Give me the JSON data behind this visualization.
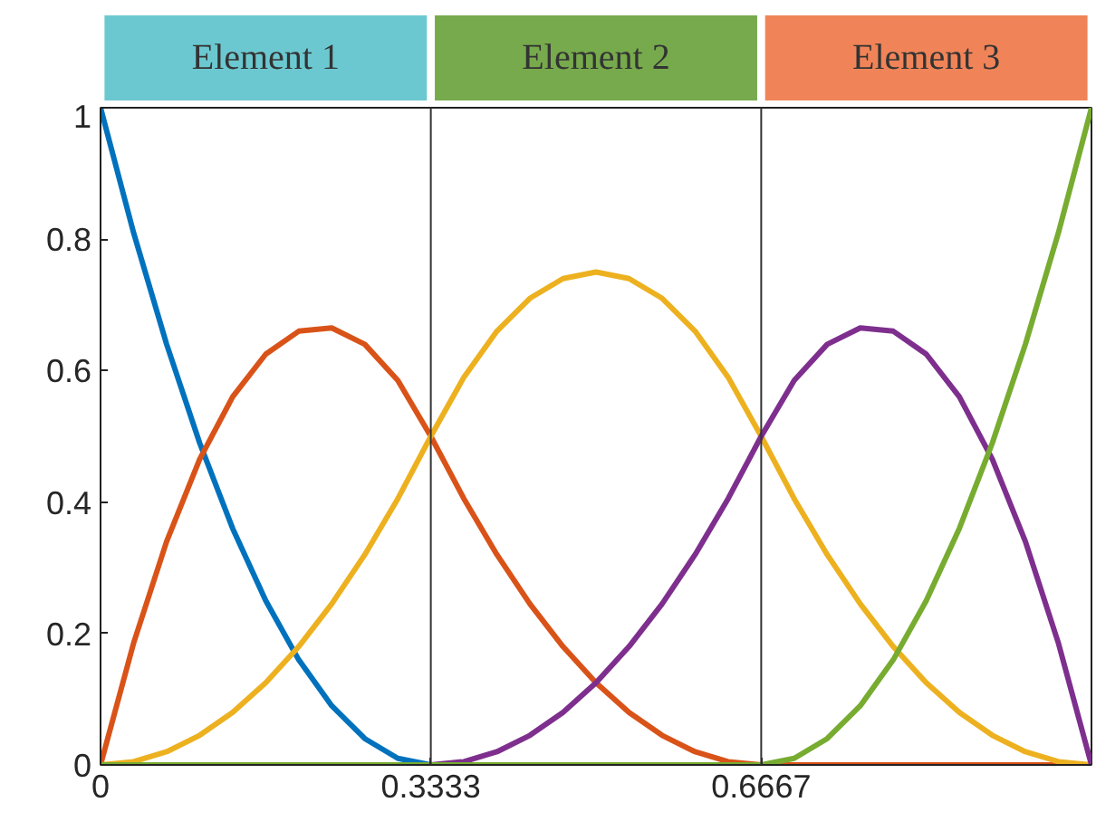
{
  "chart_data": {
    "type": "line",
    "x": [
      0,
      0.0333,
      0.0667,
      0.1,
      0.1333,
      0.1667,
      0.2,
      0.2333,
      0.2667,
      0.3,
      0.3333,
      0.3667,
      0.4,
      0.4333,
      0.4667,
      0.5,
      0.5333,
      0.5667,
      0.6,
      0.6333,
      0.6667,
      0.7,
      0.7333,
      0.7667,
      0.8,
      0.8333,
      0.8667,
      0.9,
      0.9333,
      0.9667,
      1
    ],
    "series": [
      {
        "color": "#0072bd",
        "values": [
          1,
          0.81,
          0.64,
          0.49,
          0.36,
          0.25,
          0.16,
          0.09,
          0.04,
          0.01,
          0,
          null,
          null,
          null,
          null,
          null,
          null,
          null,
          null,
          null,
          null,
          null,
          null,
          null,
          null,
          null,
          null,
          null,
          null,
          null,
          null
        ]
      },
      {
        "color": "#d95319",
        "values": [
          0,
          0.185,
          0.34,
          0.465,
          0.56,
          0.625,
          0.66,
          0.665,
          0.64,
          0.585,
          0.5,
          0.405,
          0.32,
          0.245,
          0.18,
          0.125,
          0.08,
          0.045,
          0.02,
          0.005,
          0,
          0,
          0,
          0,
          0,
          0,
          0,
          0,
          0,
          0,
          0
        ]
      },
      {
        "color": "#edb120",
        "values": [
          0,
          0.005,
          0.02,
          0.045,
          0.08,
          0.125,
          0.18,
          0.245,
          0.32,
          0.405,
          0.5,
          0.59,
          0.66,
          0.71,
          0.74,
          0.75,
          0.74,
          0.71,
          0.66,
          0.59,
          0.5,
          0.405,
          0.32,
          0.245,
          0.18,
          0.125,
          0.08,
          0.045,
          0.02,
          0.005,
          0
        ]
      },
      {
        "color": "#7e2f8e",
        "values": [
          null,
          null,
          null,
          null,
          null,
          null,
          null,
          null,
          null,
          0,
          0,
          0.005,
          0.02,
          0.045,
          0.08,
          0.125,
          0.18,
          0.245,
          0.32,
          0.405,
          0.5,
          0.585,
          0.64,
          0.665,
          0.66,
          0.625,
          0.56,
          0.465,
          0.34,
          0.185,
          0
        ]
      },
      {
        "color": "#77ac30",
        "values": [
          0,
          0,
          0,
          0,
          0,
          0,
          0,
          0,
          0,
          0,
          0,
          0,
          0,
          0,
          0,
          0,
          0,
          0,
          0,
          0,
          0,
          0.01,
          0.04,
          0.09,
          0.16,
          0.25,
          0.36,
          0.49,
          0.64,
          0.81,
          1
        ]
      }
    ],
    "xlim": [
      0,
      1
    ],
    "ylim": [
      0,
      1
    ],
    "xticks": [
      0,
      0.3333,
      0.6667
    ],
    "yticks": [
      0,
      0.2,
      0.4,
      0.6,
      0.8,
      1
    ],
    "ref_lines": [
      {
        "axis": "x",
        "value": 0.3333,
        "color": "#333333"
      },
      {
        "axis": "x",
        "value": 0.6667,
        "color": "#333333"
      }
    ],
    "annotations": [
      "Element 1",
      "Element 2",
      "Element 3"
    ],
    "grid": false
  }
}
